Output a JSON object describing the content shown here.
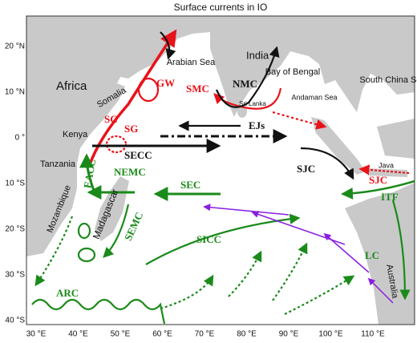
{
  "title": "Surface currents in IO",
  "lon_labels": [
    "30 °E",
    "40 °E",
    "50 °E",
    "60 °E",
    "70 °E",
    "80 °E",
    "90 °E",
    "100 °E",
    "110 °E"
  ],
  "lat_labels": [
    "20 °N",
    "10 °N",
    "0 °",
    "10 °S",
    "20 °S",
    "30 °S",
    "40 °S"
  ],
  "regions": [
    "Africa",
    "Somalia",
    "Kenya",
    "Tanzania",
    "Mozambique",
    "Madagascar",
    "Arabian Sea",
    "India",
    "Bay of Bengal",
    "Sri Lanka",
    "Andaman Sea",
    "South China Sea",
    "Java",
    "Australia"
  ],
  "currents": [
    "GW",
    "SC",
    "SG",
    "SMC",
    "NMC",
    "EJs",
    "SECC",
    "SJC",
    "SJC",
    "EACC",
    "NEMC",
    "SEC",
    "SEMC",
    "SICC",
    "ITF",
    "LC",
    "ARC"
  ]
}
